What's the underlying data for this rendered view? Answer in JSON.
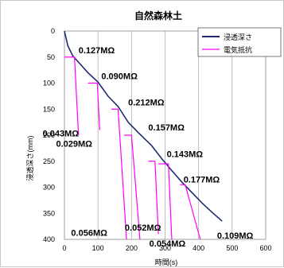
{
  "chart_data": {
    "type": "line",
    "title": "自然森林土",
    "xlabel": "時間(s)",
    "ylabel": "浸透深さ(mm)",
    "xlim": [
      0,
      600
    ],
    "ylim": [
      0,
      400
    ],
    "y_inverted": true,
    "x_ticks": [
      0,
      100,
      200,
      300,
      400,
      500,
      600
    ],
    "y_ticks": [
      0,
      50,
      100,
      150,
      200,
      250,
      300,
      350,
      400
    ],
    "grid": "vertical",
    "legend_position": "top-right",
    "colors": {
      "depth": "#1f2a6e",
      "resistance": "#ff00ff"
    },
    "series": [
      {
        "name": "浸透深さ",
        "x": [
          0,
          10,
          25,
          45,
          70,
          100,
          130,
          160,
          190,
          220,
          260,
          290,
          320,
          350,
          380,
          410,
          440,
          470
        ],
        "y": [
          0,
          28,
          48,
          62,
          80,
          98,
          125,
          145,
          175,
          195,
          220,
          245,
          268,
          290,
          310,
          330,
          348,
          365
        ]
      },
      {
        "name": "電気抵抗",
        "segments": [
          {
            "x": [
              0,
              30,
              42
            ],
            "y": [
              50,
              50,
              200
            ]
          },
          {
            "x": [
              70,
              98,
              105
            ],
            "y": [
              100,
              100,
              190
            ]
          },
          {
            "x": [
              140,
              160,
              185
            ],
            "y": [
              150,
              150,
              400
            ]
          },
          {
            "x": [
              178,
              200,
              225
            ],
            "y": [
              200,
              200,
              400
            ]
          },
          {
            "x": [
              250,
              270,
              280
            ],
            "y": [
              250,
              250,
              390
            ]
          },
          {
            "x": [
              280,
              310,
              320
            ],
            "y": [
              255,
              255,
              400
            ]
          },
          {
            "x": [
              345,
              360,
              405
            ],
            "y": [
              295,
              295,
              400
            ]
          }
        ]
      }
    ],
    "annotations": [
      {
        "text": "0.127MΩ",
        "x": 42,
        "y": 37
      },
      {
        "text": "0.090MΩ",
        "x": 110,
        "y": 86
      },
      {
        "text": "0.212MΩ",
        "x": 190,
        "y": 137
      },
      {
        "text": "0.157MΩ",
        "x": 250,
        "y": 185
      },
      {
        "text": "0.043MΩ",
        "x": -65,
        "y": 196
      },
      {
        "text": "0.029MΩ",
        "x": -25,
        "y": 216
      },
      {
        "text": "0.143MΩ",
        "x": 305,
        "y": 236
      },
      {
        "text": "0.177MΩ",
        "x": 355,
        "y": 285
      },
      {
        "text": "0.056MΩ",
        "x": 20,
        "y": 387
      },
      {
        "text": "0.052MΩ",
        "x": 180,
        "y": 377
      },
      {
        "text": "0.054MΩ",
        "x": 253,
        "y": 408
      },
      {
        "text": "0.109MΩ",
        "x": 455,
        "y": 392
      }
    ]
  }
}
